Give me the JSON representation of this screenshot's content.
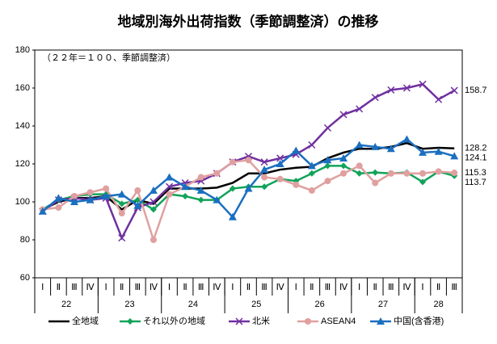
{
  "chart_data": {
    "type": "line",
    "title": "地域別海外出荷指数（季節調整済）の推移",
    "note": "（２２年＝１００、季節調整済）",
    "categories": [
      "Ⅰ",
      "Ⅱ",
      "Ⅲ",
      "Ⅳ",
      "Ⅰ",
      "Ⅱ",
      "Ⅲ",
      "Ⅳ",
      "Ⅰ",
      "Ⅱ",
      "Ⅲ",
      "Ⅳ",
      "Ⅰ",
      "Ⅱ",
      "Ⅲ",
      "Ⅳ",
      "Ⅰ",
      "Ⅱ",
      "Ⅲ",
      "Ⅳ",
      "Ⅰ",
      "Ⅱ",
      "Ⅲ",
      "Ⅳ",
      "Ⅰ",
      "Ⅱ",
      "Ⅲ"
    ],
    "groups": [
      {
        "label": "22",
        "size": 4
      },
      {
        "label": "23",
        "size": 4
      },
      {
        "label": "24",
        "size": 4
      },
      {
        "label": "25",
        "size": 4
      },
      {
        "label": "26",
        "size": 4
      },
      {
        "label": "27",
        "size": 4
      },
      {
        "label": "28",
        "size": 3
      }
    ],
    "ylim": [
      60,
      180
    ],
    "yticks": [
      60,
      80,
      100,
      120,
      140,
      160,
      180
    ],
    "grid": false,
    "legend": "bottom",
    "series": [
      {
        "name": "全地域",
        "color": "#000000",
        "marker": "none",
        "values": [
          96,
          100,
          102,
          102,
          103,
          96,
          101,
          99,
          107,
          107,
          107,
          107.5,
          110,
          115,
          115,
          117,
          118,
          118.5,
          123,
          126,
          128,
          128,
          129,
          131,
          128,
          128.5,
          128.2
        ]
      },
      {
        "name": "それ以外の地域",
        "color": "#12a35a",
        "marker": "diamond",
        "values": [
          96,
          101,
          103,
          104,
          104,
          99,
          101,
          96,
          104,
          103,
          101,
          101,
          107,
          108,
          108,
          112,
          111,
          115,
          119,
          119,
          115,
          115.5,
          115,
          115.5,
          110.5,
          116,
          113.7
        ]
      },
      {
        "name": "北米",
        "color": "#7030a0",
        "marker": "x",
        "values": [
          95,
          101,
          102,
          101,
          102,
          81,
          97,
          100,
          108,
          110,
          111,
          115,
          121,
          124,
          121,
          123,
          125,
          130,
          139,
          146,
          149,
          155,
          159,
          160,
          162,
          154,
          158.7
        ]
      },
      {
        "name": "ASEAN4",
        "color": "#e0a0a0",
        "marker": "circle",
        "values": [
          96,
          97,
          103,
          105,
          107,
          94,
          106,
          80,
          104,
          108,
          113,
          115,
          121,
          122,
          113,
          112,
          109,
          106,
          111,
          115,
          119,
          110,
          115,
          115,
          115,
          116,
          115.3
        ]
      },
      {
        "name": "中国(含香港)",
        "color": "#1a6fc0",
        "marker": "triangle",
        "values": [
          95,
          102,
          100,
          101,
          103,
          104,
          98,
          106,
          113,
          108,
          106,
          101,
          92,
          107,
          117,
          120,
          127,
          119,
          122,
          123,
          130,
          129,
          128,
          133,
          126,
          126.5,
          124.1
        ]
      }
    ]
  }
}
